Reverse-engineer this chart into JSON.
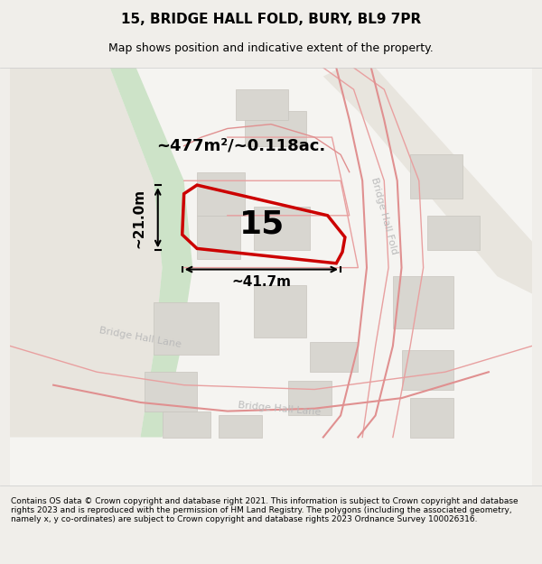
{
  "title": "15, BRIDGE HALL FOLD, BURY, BL9 7PR",
  "subtitle": "Map shows position and indicative extent of the property.",
  "footer": "Contains OS data © Crown copyright and database right 2021. This information is subject to Crown copyright and database rights 2023 and is reproduced with the permission of HM Land Registry. The polygons (including the associated geometry, namely x, y co-ordinates) are subject to Crown copyright and database rights 2023 Ordnance Survey 100026316.",
  "area_label": "~477m²/~0.118ac.",
  "width_label": "~41.7m",
  "height_label": "~21.0m",
  "property_number": "15",
  "bg_color": "#f0eeea",
  "map_bg": "#f7f6f3",
  "road_color": "#e8e0d0",
  "building_color": "#d8d4cc",
  "building_fill": "#dddad4",
  "green_fill": "#d4e8d0",
  "property_outline_color": "#cc0000",
  "property_fill": "none",
  "road_label_color": "#aaaaaa",
  "title_fontsize": 11,
  "subtitle_fontsize": 9,
  "footer_fontsize": 7
}
